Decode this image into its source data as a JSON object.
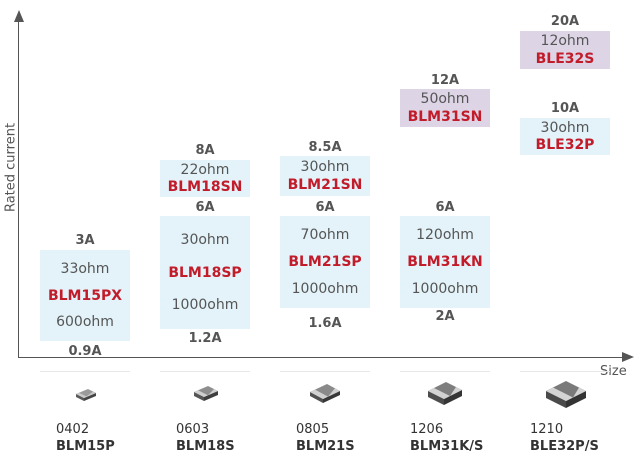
{
  "axes": {
    "y_label": "Rated current",
    "x_label": "Size"
  },
  "columns": [
    {
      "size": "0402",
      "series": "BLM15P",
      "low": {
        "top_current": "3A",
        "resistances": [
          "33ohm",
          "600ohm"
        ],
        "part": "BLM15PX",
        "bottom_current": "0.9A"
      }
    },
    {
      "size": "0603",
      "series": "BLM18S",
      "low": {
        "top_current": "6A",
        "resistances": [
          "30ohm",
          "1000ohm"
        ],
        "part": "BLM18SP",
        "bottom_current": "1.2A"
      },
      "high": {
        "current": "8A",
        "resistance": "22ohm",
        "part": "BLM18SN"
      }
    },
    {
      "size": "0805",
      "series": "BLM21S",
      "low": {
        "top_current": "6A",
        "resistances": [
          "70ohm",
          "1000ohm"
        ],
        "part": "BLM21SP",
        "bottom_current": "1.6A"
      },
      "high": {
        "current": "8.5A",
        "resistance": "30ohm",
        "part": "BLM21SN"
      }
    },
    {
      "size": "1206",
      "series": "BLM31K/S",
      "low": {
        "top_current": "6A",
        "resistances": [
          "120ohm",
          "1000ohm"
        ],
        "part": "BLM31KN",
        "bottom_current": "2A"
      },
      "high": {
        "current": "12A",
        "resistance": "50ohm",
        "part": "BLM31SN"
      }
    },
    {
      "size": "1210",
      "series": "BLE32P/S",
      "mid": {
        "current": "10A",
        "resistance": "30ohm",
        "part": "BLE32P"
      },
      "high": {
        "current": "20A",
        "resistance": "12ohm",
        "part": "BLE32S"
      }
    }
  ],
  "colors": {
    "blue_box": "#e3f3f9",
    "purple_box": "#ddd4e6",
    "part_red": "#c21b2a",
    "axis": "#555555"
  }
}
